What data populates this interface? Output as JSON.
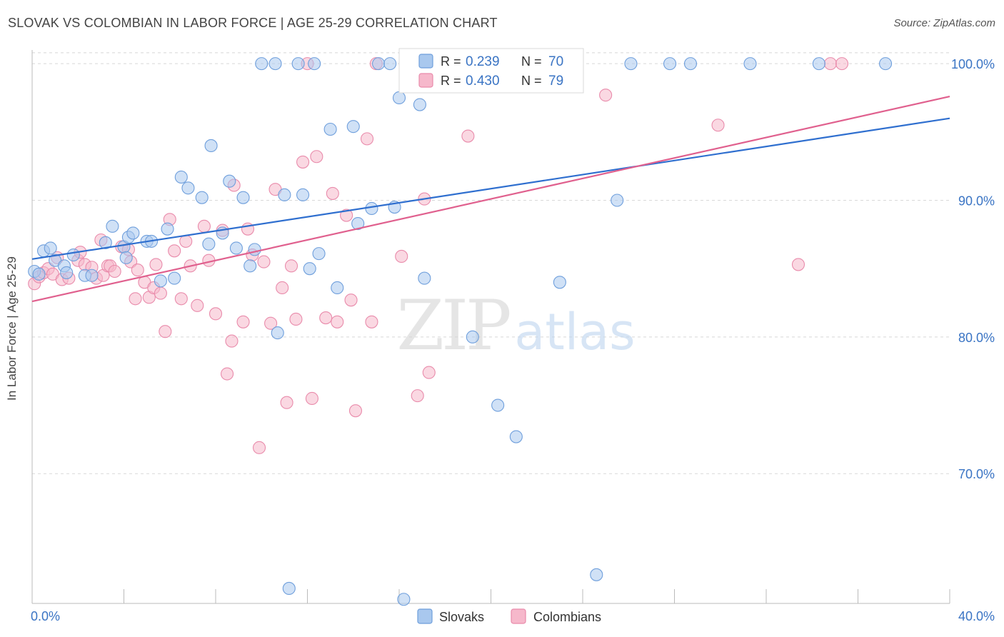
{
  "title": "SLOVAK VS COLOMBIAN IN LABOR FORCE | AGE 25-29 CORRELATION CHART",
  "source": "Source: ZipAtlas.com",
  "watermark": {
    "zip": "ZIP",
    "atlas": "atlas"
  },
  "colors": {
    "slovaks_fill": "#a9c8ee",
    "slovaks_stroke": "#6f9fdc",
    "slovaks_line": "#2f6fcf",
    "colombians_fill": "#f6b8cb",
    "colombians_stroke": "#e98bab",
    "colombians_line": "#e0608e",
    "tick_label": "#3a74c4",
    "grid": "#d8d8d8"
  },
  "legend_top": {
    "r_label": "R =",
    "n_label": "N =",
    "rows": [
      {
        "r": "0.239",
        "n": "70"
      },
      {
        "r": "0.430",
        "n": "79"
      }
    ]
  },
  "chart_data": {
    "type": "scatter",
    "title": "SLOVAK VS COLOMBIAN IN LABOR FORCE | AGE 25-29 CORRELATION CHART",
    "xlabel": "",
    "ylabel": "In Labor Force | Age 25-29",
    "xlim": [
      0,
      40
    ],
    "ylim": [
      60.5,
      101
    ],
    "x_tick_labels": [
      "0.0%",
      "40.0%"
    ],
    "y_ticks": [
      70,
      80,
      90,
      100
    ],
    "y_tick_labels": [
      "70.0%",
      "80.0%",
      "90.0%",
      "100.0%"
    ],
    "grid": true,
    "legend_position": "bottom",
    "series": [
      {
        "name": "Slovaks",
        "r": 0.239,
        "n": 70,
        "trend": {
          "x": [
            0,
            40
          ],
          "y": [
            85.7,
            96.0
          ]
        },
        "points": [
          [
            0.1,
            84.8
          ],
          [
            0.3,
            84.6
          ],
          [
            0.5,
            86.3
          ],
          [
            0.8,
            86.5
          ],
          [
            1.0,
            85.6
          ],
          [
            1.4,
            85.2
          ],
          [
            1.5,
            84.7
          ],
          [
            1.8,
            86.0
          ],
          [
            2.3,
            84.5
          ],
          [
            2.6,
            84.5
          ],
          [
            3.2,
            86.9
          ],
          [
            3.5,
            88.1
          ],
          [
            4.0,
            86.6
          ],
          [
            4.1,
            85.8
          ],
          [
            4.2,
            87.3
          ],
          [
            4.4,
            87.6
          ],
          [
            5.0,
            87.0
          ],
          [
            5.2,
            87.0
          ],
          [
            5.6,
            84.1
          ],
          [
            5.9,
            87.9
          ],
          [
            6.2,
            84.3
          ],
          [
            6.5,
            91.7
          ],
          [
            6.8,
            90.9
          ],
          [
            7.4,
            90.2
          ],
          [
            7.7,
            86.8
          ],
          [
            7.8,
            94.0
          ],
          [
            8.3,
            87.6
          ],
          [
            8.6,
            91.4
          ],
          [
            8.9,
            86.5
          ],
          [
            9.2,
            90.2
          ],
          [
            9.5,
            85.2
          ],
          [
            9.7,
            86.4
          ],
          [
            10.0,
            100.0
          ],
          [
            10.6,
            100.0
          ],
          [
            10.7,
            80.3
          ],
          [
            11.0,
            90.4
          ],
          [
            11.2,
            61.6
          ],
          [
            11.6,
            100.0
          ],
          [
            11.8,
            90.4
          ],
          [
            12.1,
            85.0
          ],
          [
            12.3,
            100.0
          ],
          [
            12.5,
            86.1
          ],
          [
            13.0,
            95.2
          ],
          [
            13.3,
            83.6
          ],
          [
            14.0,
            95.4
          ],
          [
            14.2,
            88.3
          ],
          [
            14.8,
            89.4
          ],
          [
            15.1,
            100.0
          ],
          [
            15.6,
            100.0
          ],
          [
            15.8,
            89.5
          ],
          [
            16.0,
            97.5
          ],
          [
            16.2,
            60.8
          ],
          [
            16.9,
            97.0
          ],
          [
            17.1,
            84.3
          ],
          [
            18.4,
            100.0
          ],
          [
            19.2,
            80.0
          ],
          [
            20.3,
            75.0
          ],
          [
            20.9,
            100.0
          ],
          [
            21.1,
            72.7
          ],
          [
            22.0,
            100.0
          ],
          [
            23.0,
            84.0
          ],
          [
            23.5,
            100.0
          ],
          [
            24.6,
            62.6
          ],
          [
            25.5,
            90.0
          ],
          [
            26.1,
            100.0
          ],
          [
            27.8,
            100.0
          ],
          [
            28.7,
            100.0
          ],
          [
            31.3,
            100.0
          ],
          [
            34.3,
            100.0
          ],
          [
            37.2,
            100.0
          ]
        ]
      },
      {
        "name": "Colombians",
        "r": 0.43,
        "n": 79,
        "trend": {
          "x": [
            0,
            40
          ],
          "y": [
            82.6,
            97.6
          ]
        },
        "points": [
          [
            0.1,
            83.9
          ],
          [
            0.3,
            84.4
          ],
          [
            0.5,
            84.7
          ],
          [
            0.7,
            85.0
          ],
          [
            0.9,
            84.6
          ],
          [
            1.1,
            85.8
          ],
          [
            1.3,
            84.2
          ],
          [
            1.6,
            84.3
          ],
          [
            2.0,
            85.6
          ],
          [
            2.1,
            86.2
          ],
          [
            2.3,
            85.3
          ],
          [
            2.6,
            85.1
          ],
          [
            2.8,
            84.3
          ],
          [
            3.0,
            87.1
          ],
          [
            3.1,
            84.5
          ],
          [
            3.3,
            85.2
          ],
          [
            3.4,
            85.2
          ],
          [
            3.6,
            84.8
          ],
          [
            3.9,
            86.6
          ],
          [
            4.2,
            86.4
          ],
          [
            4.3,
            85.5
          ],
          [
            4.5,
            82.8
          ],
          [
            4.6,
            84.9
          ],
          [
            4.9,
            84.0
          ],
          [
            5.1,
            82.9
          ],
          [
            5.3,
            83.6
          ],
          [
            5.4,
            85.3
          ],
          [
            5.6,
            83.2
          ],
          [
            5.8,
            80.4
          ],
          [
            6.0,
            88.6
          ],
          [
            6.2,
            86.3
          ],
          [
            6.5,
            82.8
          ],
          [
            6.7,
            87.0
          ],
          [
            6.9,
            85.2
          ],
          [
            7.2,
            82.3
          ],
          [
            7.5,
            88.1
          ],
          [
            7.7,
            85.6
          ],
          [
            8.0,
            81.7
          ],
          [
            8.3,
            87.8
          ],
          [
            8.5,
            77.3
          ],
          [
            8.7,
            79.7
          ],
          [
            8.8,
            91.1
          ],
          [
            9.2,
            81.1
          ],
          [
            9.4,
            87.9
          ],
          [
            9.6,
            86.0
          ],
          [
            9.9,
            71.9
          ],
          [
            10.1,
            85.5
          ],
          [
            10.4,
            81.0
          ],
          [
            10.6,
            90.8
          ],
          [
            10.9,
            83.6
          ],
          [
            11.1,
            75.2
          ],
          [
            11.3,
            85.2
          ],
          [
            11.5,
            81.3
          ],
          [
            11.8,
            92.8
          ],
          [
            12.0,
            100.0
          ],
          [
            12.2,
            75.5
          ],
          [
            12.4,
            93.2
          ],
          [
            12.8,
            81.4
          ],
          [
            13.1,
            90.5
          ],
          [
            13.3,
            81.1
          ],
          [
            13.7,
            88.9
          ],
          [
            13.9,
            82.7
          ],
          [
            14.1,
            74.6
          ],
          [
            14.6,
            94.5
          ],
          [
            14.8,
            81.1
          ],
          [
            15.0,
            100.0
          ],
          [
            16.1,
            85.9
          ],
          [
            16.8,
            75.7
          ],
          [
            17.1,
            90.1
          ],
          [
            17.3,
            77.4
          ],
          [
            17.5,
            100.0
          ],
          [
            18.1,
            100.0
          ],
          [
            19.0,
            94.7
          ],
          [
            23.7,
            100.0
          ],
          [
            25.0,
            97.7
          ],
          [
            29.9,
            95.5
          ],
          [
            33.4,
            85.3
          ],
          [
            34.8,
            100.0
          ],
          [
            35.3,
            100.0
          ]
        ]
      }
    ]
  },
  "legend_bottom": [
    "Slovaks",
    "Colombians"
  ]
}
